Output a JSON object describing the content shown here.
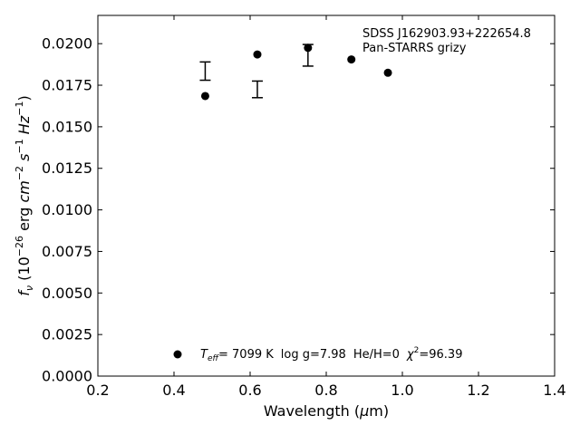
{
  "chart_data": {
    "type": "scatter",
    "xlabel": "Wavelength (μm)",
    "ylabel": "f_ν (10^-26 erg cm^-2 s^-1 Hz^-1)",
    "xlim": [
      0.2,
      1.4
    ],
    "ylim": [
      0.0,
      0.0217
    ],
    "x_ticks": [
      "0.2",
      "0.4",
      "0.6",
      "0.8",
      "1.0",
      "1.2",
      "1.4"
    ],
    "y_ticks": [
      "0.0000",
      "0.0025",
      "0.0050",
      "0.0075",
      "0.0100",
      "0.0125",
      "0.0150",
      "0.0175",
      "0.0200"
    ],
    "annotation_lines": [
      "SDSS J162903.93+222654.8",
      "Pan-STARRS grizy"
    ],
    "legend": {
      "placement": "bottom-center",
      "teff_symbol": "T",
      "teff_sub": "eff",
      "teff_value": "=  7099 K",
      "logg": "log g=7.98",
      "heh": "He/H=0",
      "chi_symbol": "χ",
      "chi_sup": "2",
      "chi_value": "=96.39"
    },
    "model_points": {
      "x": [
        0.482,
        0.619,
        0.752,
        0.866,
        0.962
      ],
      "y": [
        0.01685,
        0.01935,
        0.01975,
        0.01905,
        0.01825
      ]
    },
    "observed_errorbars": [
      {
        "x": 0.482,
        "y": 0.01835,
        "err": 0.00055
      },
      {
        "x": 0.619,
        "y": 0.01725,
        "err": 0.0005
      },
      {
        "x": 0.752,
        "y": 0.0193,
        "err": 0.00065
      }
    ]
  }
}
